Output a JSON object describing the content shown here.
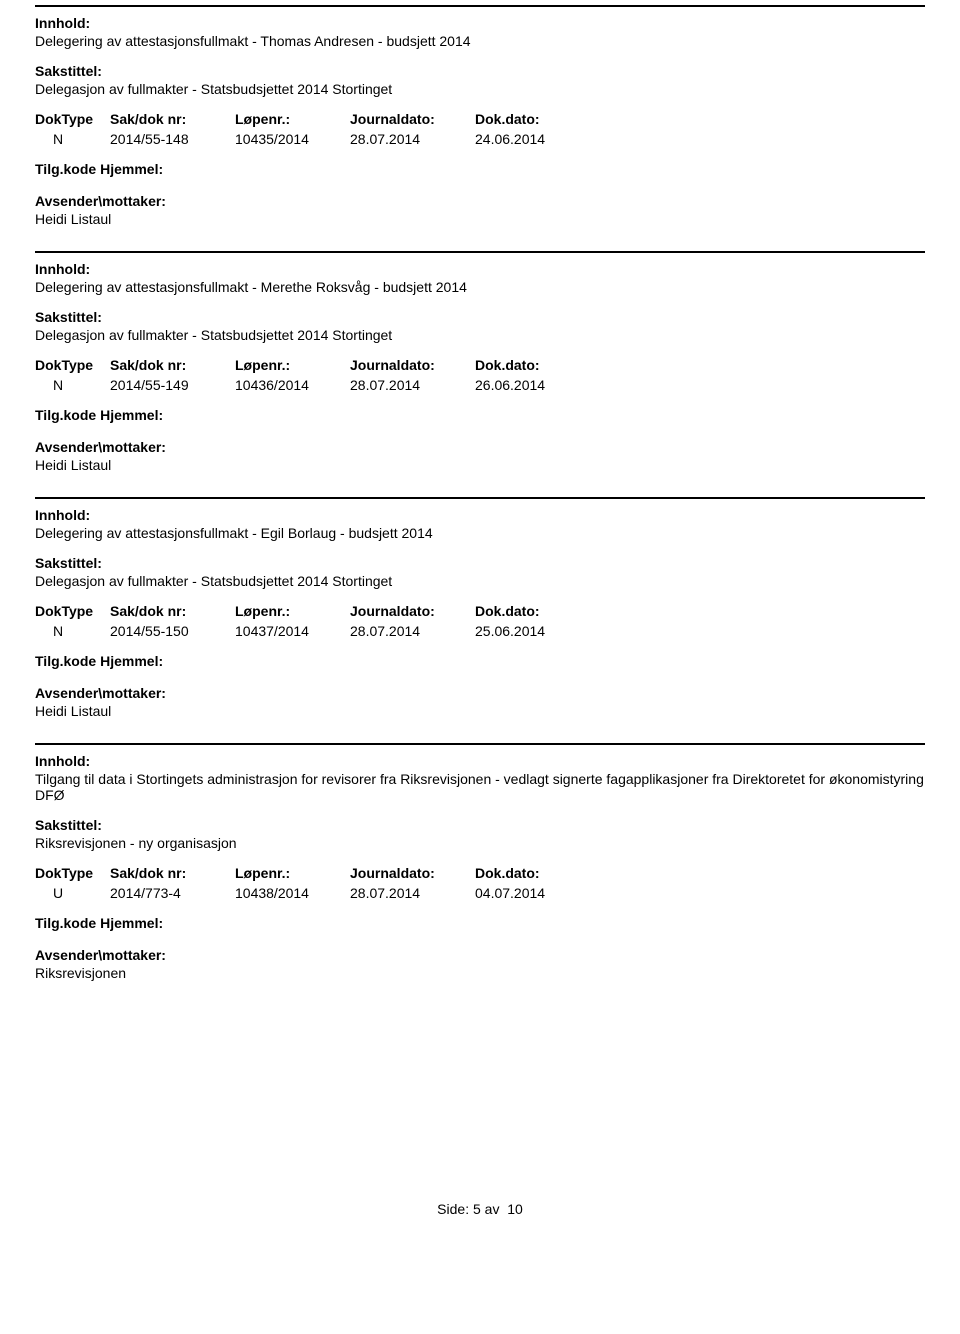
{
  "labels": {
    "innhold": "Innhold:",
    "sakstittel": "Sakstittel:",
    "doktype": "DokType",
    "sakdok": "Sak/dok nr:",
    "lopenr": "Løpenr.:",
    "journaldato": "Journaldato:",
    "dokdato": "Dok.dato:",
    "tilgkode": "Tilg.kode",
    "hjemmel": "Hjemmel:",
    "avsender": "Avsender\\mottaker:",
    "side": "Side:",
    "av": "av"
  },
  "entries": [
    {
      "content": "Delegering av attestasjonsfullmakt - Thomas Andresen - budsjett 2014",
      "caseTitle": "Delegasjon av fullmakter -  Statsbudsjettet 2014 Stortinget",
      "doktype": "N",
      "sakdok": "2014/55-148",
      "lopenr": "10435/2014",
      "journaldato": "28.07.2014",
      "dokdato": "24.06.2014",
      "sender": "Heidi Listaul"
    },
    {
      "content": "Delegering av attestasjonsfullmakt - Merethe Roksvåg - budsjett 2014",
      "caseTitle": "Delegasjon av fullmakter -  Statsbudsjettet 2014 Stortinget",
      "doktype": "N",
      "sakdok": "2014/55-149",
      "lopenr": "10436/2014",
      "journaldato": "28.07.2014",
      "dokdato": "26.06.2014",
      "sender": "Heidi Listaul"
    },
    {
      "content": "Delegering av attestasjonsfullmakt - Egil Borlaug - budsjett 2014",
      "caseTitle": "Delegasjon av fullmakter -  Statsbudsjettet 2014 Stortinget",
      "doktype": "N",
      "sakdok": "2014/55-150",
      "lopenr": "10437/2014",
      "journaldato": "28.07.2014",
      "dokdato": "25.06.2014",
      "sender": "Heidi Listaul"
    },
    {
      "content": "Tilgang til data i Stortingets administrasjon for revisorer fra Riksrevisjonen - vedlagt signerte fagapplikasjoner fra Direktoretet for økonomistyring DFØ",
      "caseTitle": "Riksrevisjonen - ny organisasjon",
      "doktype": "U",
      "sakdok": "2014/773-4",
      "lopenr": "10438/2014",
      "journaldato": "28.07.2014",
      "dokdato": "04.07.2014",
      "sender": "Riksrevisjonen"
    }
  ],
  "page": {
    "current": "5",
    "total": "10"
  }
}
